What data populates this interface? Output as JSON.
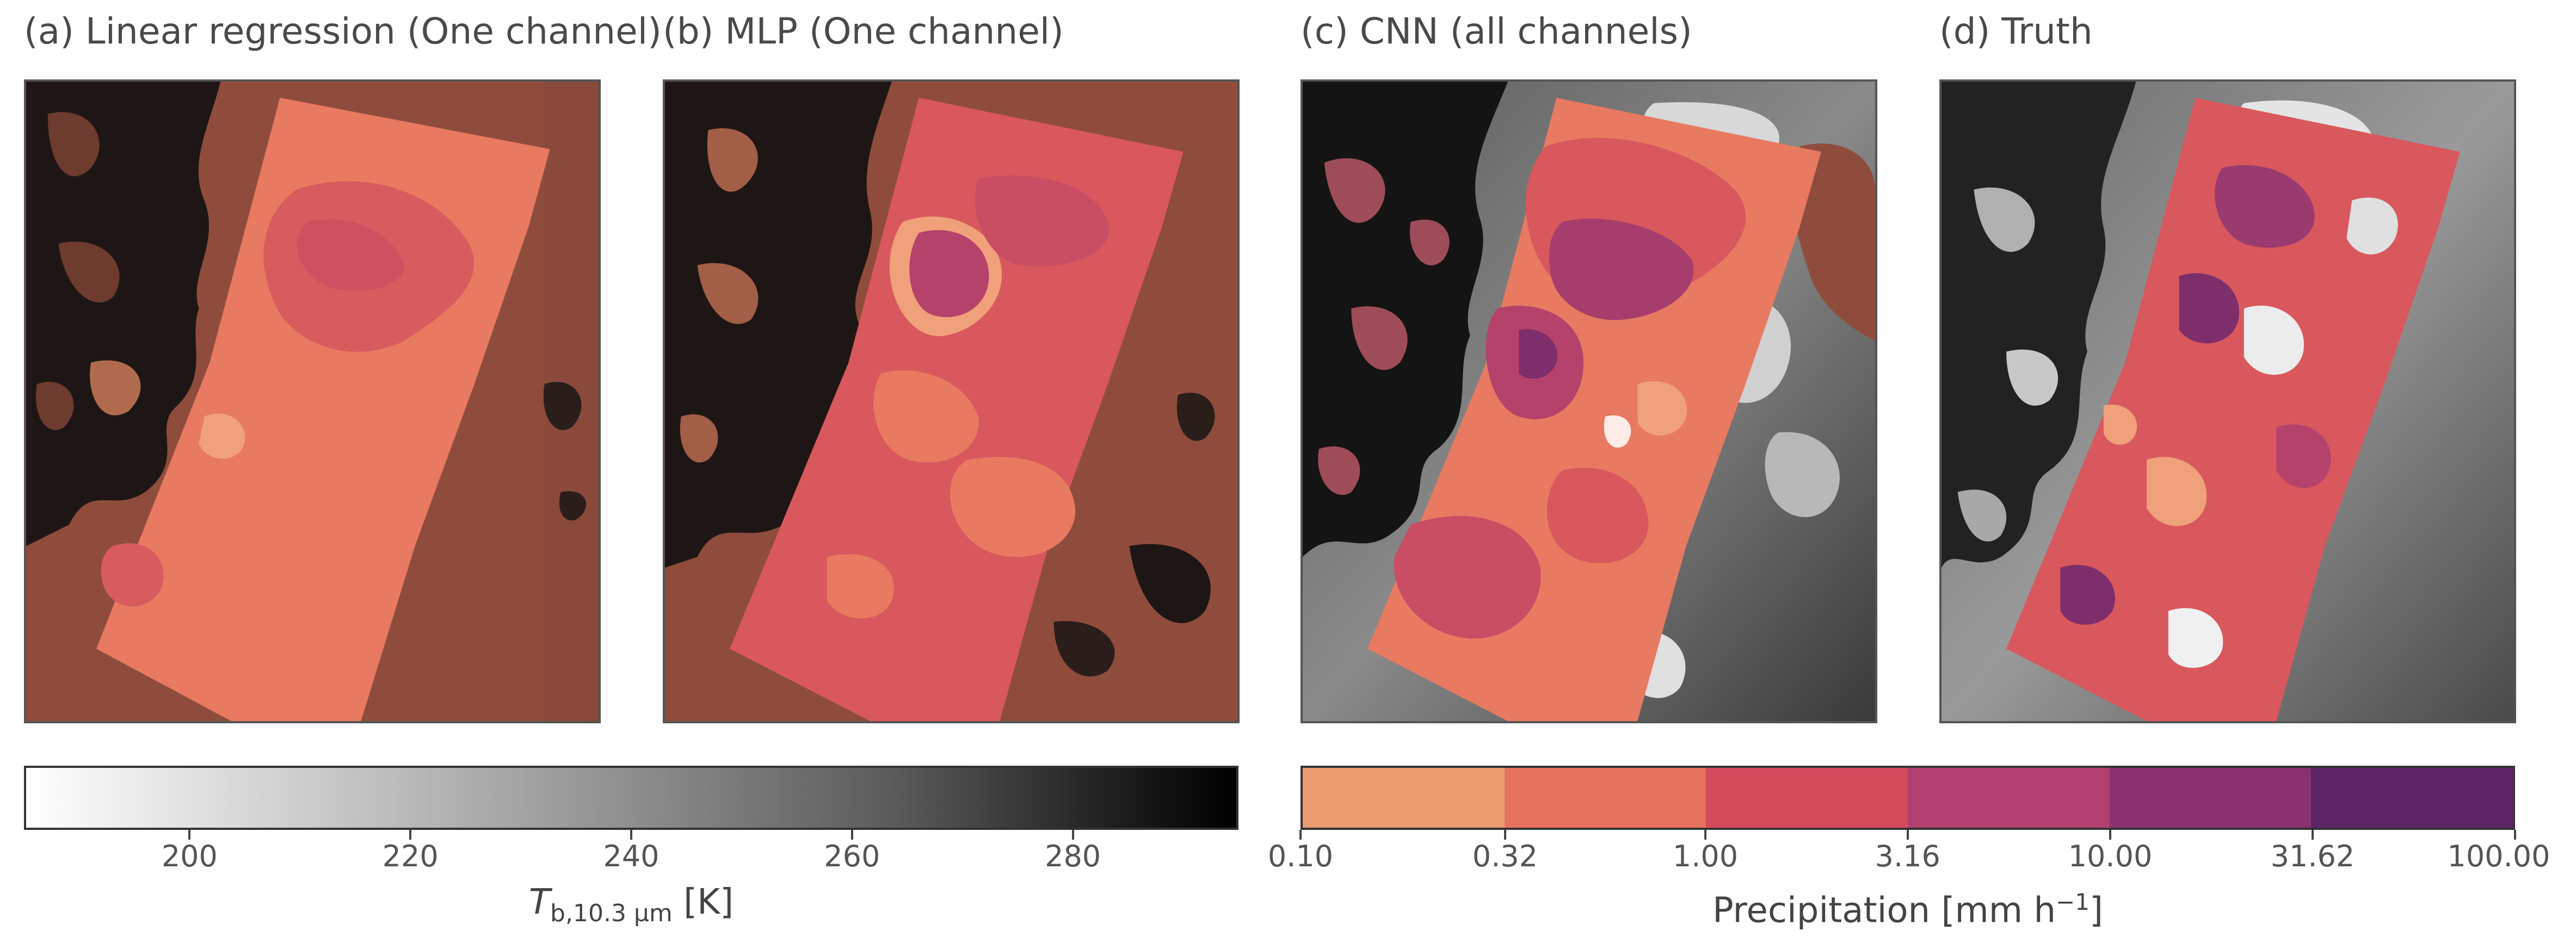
{
  "chart_data": [
    {
      "type": "heatmap",
      "panel": "a",
      "title": "(a) Linear regression (One channel)",
      "background": "brightness temperature (dark brown overlay)",
      "overlay": "precipitation swath"
    },
    {
      "type": "heatmap",
      "panel": "b",
      "title": "(b) MLP (One channel)",
      "overlay": "precipitation swath"
    },
    {
      "type": "heatmap",
      "panel": "c",
      "title": "(c) CNN (all channels)",
      "overlay": "precipitation swath"
    },
    {
      "type": "heatmap",
      "panel": "d",
      "title": "(d) Truth",
      "overlay": "precipitation swath"
    }
  ],
  "colorbars": {
    "tb": {
      "label_main": "T",
      "label_sub": "b,10.3 µm",
      "label_unit": "[K]",
      "range": [
        185,
        295
      ],
      "ticks": [
        200,
        220,
        240,
        260,
        280
      ],
      "tick_labels": [
        "200",
        "220",
        "240",
        "260",
        "280"
      ],
      "cmap": "gray_r"
    },
    "precip": {
      "label_main": "Precipitation [mm h",
      "label_sup": "−1",
      "label_end": "]",
      "boundaries": [
        0.1,
        0.32,
        1.0,
        3.16,
        10.0,
        31.62,
        100.0
      ],
      "tick_labels": [
        "0.10",
        "0.32",
        "1.00",
        "3.16",
        "10.00",
        "31.62",
        "100.00"
      ],
      "colors": [
        "#ec9b70",
        "#e6725f",
        "#d44b5c",
        "#b13f6f",
        "#8a3170",
        "#5e2566"
      ],
      "scale": "log"
    }
  }
}
